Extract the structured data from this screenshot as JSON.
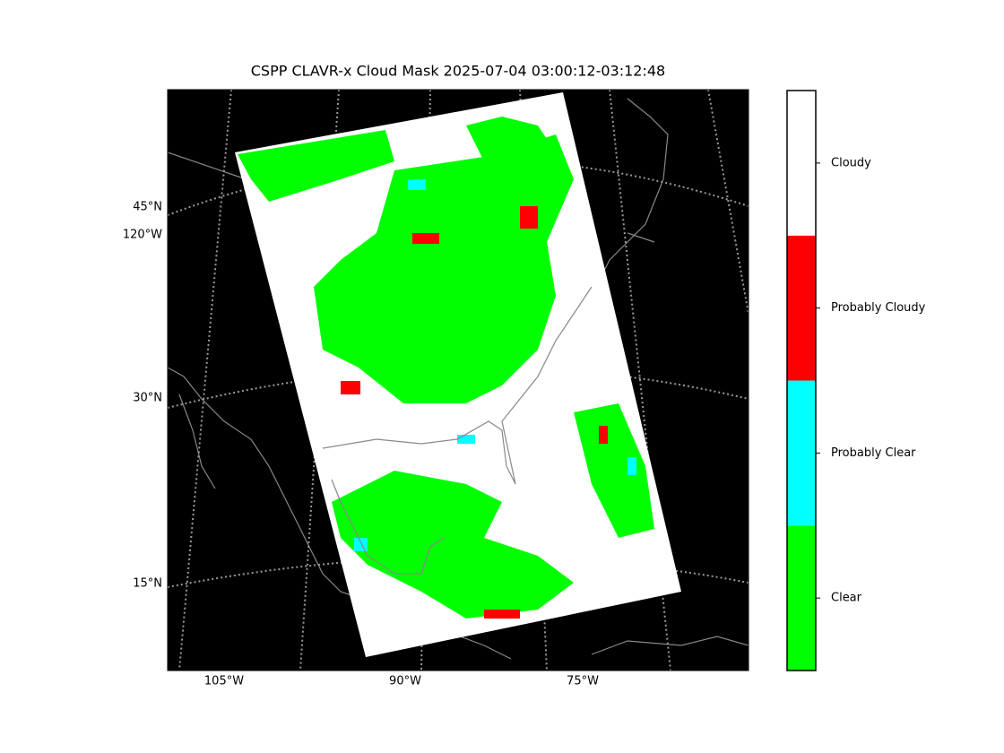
{
  "title": "CSPP CLAVR-x Cloud Mask 2025-07-04 03:00:12-03:12:48",
  "map": {
    "left_labels": [
      "45°N",
      "120°W",
      "30°N",
      "15°N"
    ],
    "bottom_labels": [
      "105°W",
      "90°W",
      "75°W"
    ]
  },
  "colorbar": {
    "categories": [
      {
        "label": "Clear",
        "color": "#00ff00"
      },
      {
        "label": "Probably Clear",
        "color": "#00ffff"
      },
      {
        "label": "Probably Cloudy",
        "color": "#ff0000"
      },
      {
        "label": "Cloudy",
        "color": "#ffffff"
      }
    ]
  }
}
